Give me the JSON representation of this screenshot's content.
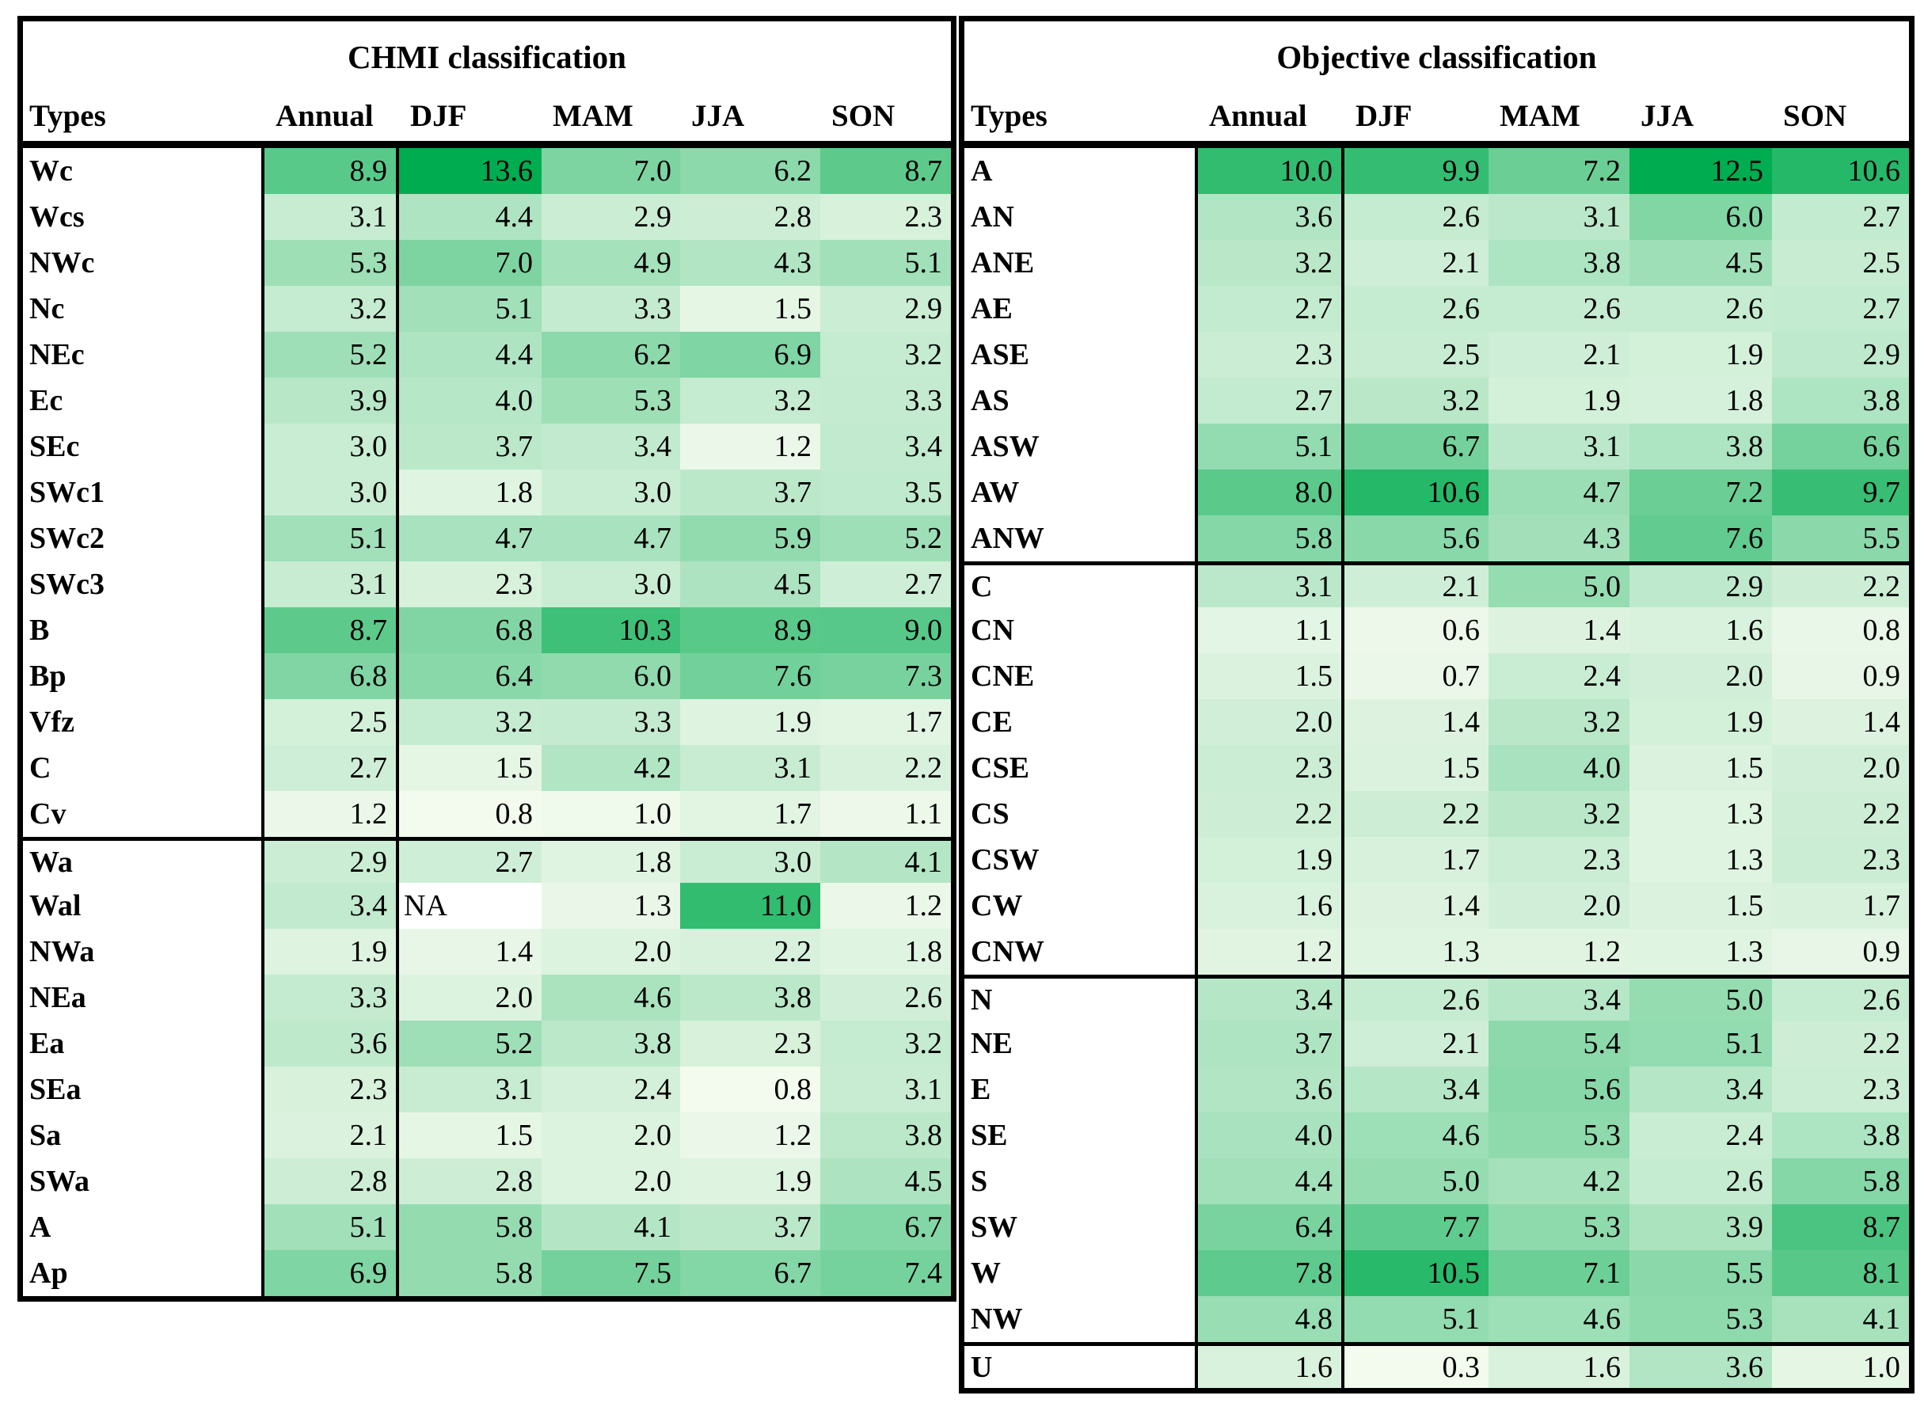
{
  "chart_data": [
    {
      "type": "heatmap",
      "title": "CHMI classification",
      "columns": [
        "Types",
        "Annual",
        "DJF",
        "MAM",
        "JJA",
        "SON"
      ],
      "color_scale": {
        "min_color": "#F3FAEE",
        "max_color": "#00AC50",
        "na_color": "#FFFFFF"
      },
      "group_breaks": [
        15
      ],
      "rows": [
        {
          "type": "Wc",
          "values": [
            "8.9",
            "13.6",
            "7.0",
            "6.2",
            "8.7"
          ]
        },
        {
          "type": "Wcs",
          "values": [
            "3.1",
            "4.4",
            "2.9",
            "2.8",
            "2.3"
          ]
        },
        {
          "type": "NWc",
          "values": [
            "5.3",
            "7.0",
            "4.9",
            "4.3",
            "5.1"
          ]
        },
        {
          "type": "Nc",
          "values": [
            "3.2",
            "5.1",
            "3.3",
            "1.5",
            "2.9"
          ]
        },
        {
          "type": "NEc",
          "values": [
            "5.2",
            "4.4",
            "6.2",
            "6.9",
            "3.2"
          ]
        },
        {
          "type": "Ec",
          "values": [
            "3.9",
            "4.0",
            "5.3",
            "3.2",
            "3.3"
          ]
        },
        {
          "type": "SEc",
          "values": [
            "3.0",
            "3.7",
            "3.4",
            "1.2",
            "3.4"
          ]
        },
        {
          "type": "SWc1",
          "values": [
            "3.0",
            "1.8",
            "3.0",
            "3.7",
            "3.5"
          ]
        },
        {
          "type": "SWc2",
          "values": [
            "5.1",
            "4.7",
            "4.7",
            "5.9",
            "5.2"
          ]
        },
        {
          "type": "SWc3",
          "values": [
            "3.1",
            "2.3",
            "3.0",
            "4.5",
            "2.7"
          ]
        },
        {
          "type": "B",
          "values": [
            "8.7",
            "6.8",
            "10.3",
            "8.9",
            "9.0"
          ]
        },
        {
          "type": "Bp",
          "values": [
            "6.8",
            "6.4",
            "6.0",
            "7.6",
            "7.3"
          ]
        },
        {
          "type": "Vfz",
          "values": [
            "2.5",
            "3.2",
            "3.3",
            "1.9",
            "1.7"
          ]
        },
        {
          "type": "C",
          "values": [
            "2.7",
            "1.5",
            "4.2",
            "3.1",
            "2.2"
          ]
        },
        {
          "type": "Cv",
          "values": [
            "1.2",
            "0.8",
            "1.0",
            "1.7",
            "1.1"
          ]
        },
        {
          "type": "Wa",
          "values": [
            "2.9",
            "2.7",
            "1.8",
            "3.0",
            "4.1"
          ]
        },
        {
          "type": "Wal",
          "values": [
            "3.4",
            "NA",
            "1.3",
            "11.0",
            "1.2"
          ]
        },
        {
          "type": "NWa",
          "values": [
            "1.9",
            "1.4",
            "2.0",
            "2.2",
            "1.8"
          ]
        },
        {
          "type": "NEa",
          "values": [
            "3.3",
            "2.0",
            "4.6",
            "3.8",
            "2.6"
          ]
        },
        {
          "type": "Ea",
          "values": [
            "3.6",
            "5.2",
            "3.8",
            "2.3",
            "3.2"
          ]
        },
        {
          "type": "SEa",
          "values": [
            "2.3",
            "3.1",
            "2.4",
            "0.8",
            "3.1"
          ]
        },
        {
          "type": "Sa",
          "values": [
            "2.1",
            "1.5",
            "2.0",
            "1.2",
            "3.8"
          ]
        },
        {
          "type": "SWa",
          "values": [
            "2.8",
            "2.8",
            "2.0",
            "1.9",
            "4.5"
          ]
        },
        {
          "type": "A",
          "values": [
            "5.1",
            "5.8",
            "4.1",
            "3.7",
            "6.7"
          ]
        },
        {
          "type": "Ap",
          "values": [
            "6.9",
            "5.8",
            "7.5",
            "6.7",
            "7.4"
          ]
        }
      ]
    },
    {
      "type": "heatmap",
      "title": "Objective classification",
      "columns": [
        "Types",
        "Annual",
        "DJF",
        "MAM",
        "JJA",
        "SON"
      ],
      "color_scale": {
        "min_color": "#F3FAEE",
        "max_color": "#00AC50",
        "na_color": "#FFFFFF"
      },
      "group_breaks": [
        9,
        18,
        26
      ],
      "rows": [
        {
          "type": "A",
          "values": [
            "10.0",
            "9.9",
            "7.2",
            "12.5",
            "10.6"
          ]
        },
        {
          "type": "AN",
          "values": [
            "3.6",
            "2.6",
            "3.1",
            "6.0",
            "2.7"
          ]
        },
        {
          "type": "ANE",
          "values": [
            "3.2",
            "2.1",
            "3.8",
            "4.5",
            "2.5"
          ]
        },
        {
          "type": "AE",
          "values": [
            "2.7",
            "2.6",
            "2.6",
            "2.6",
            "2.7"
          ]
        },
        {
          "type": "ASE",
          "values": [
            "2.3",
            "2.5",
            "2.1",
            "1.9",
            "2.9"
          ]
        },
        {
          "type": "AS",
          "values": [
            "2.7",
            "3.2",
            "1.9",
            "1.8",
            "3.8"
          ]
        },
        {
          "type": "ASW",
          "values": [
            "5.1",
            "6.7",
            "3.1",
            "3.8",
            "6.6"
          ]
        },
        {
          "type": "AW",
          "values": [
            "8.0",
            "10.6",
            "4.7",
            "7.2",
            "9.7"
          ]
        },
        {
          "type": "ANW",
          "values": [
            "5.8",
            "5.6",
            "4.3",
            "7.6",
            "5.5"
          ]
        },
        {
          "type": "C",
          "values": [
            "3.1",
            "2.1",
            "5.0",
            "2.9",
            "2.2"
          ]
        },
        {
          "type": "CN",
          "values": [
            "1.1",
            "0.6",
            "1.4",
            "1.6",
            "0.8"
          ]
        },
        {
          "type": "CNE",
          "values": [
            "1.5",
            "0.7",
            "2.4",
            "2.0",
            "0.9"
          ]
        },
        {
          "type": "CE",
          "values": [
            "2.0",
            "1.4",
            "3.2",
            "1.9",
            "1.4"
          ]
        },
        {
          "type": "CSE",
          "values": [
            "2.3",
            "1.5",
            "4.0",
            "1.5",
            "2.0"
          ]
        },
        {
          "type": "CS",
          "values": [
            "2.2",
            "2.2",
            "3.2",
            "1.3",
            "2.2"
          ]
        },
        {
          "type": "CSW",
          "values": [
            "1.9",
            "1.7",
            "2.3",
            "1.3",
            "2.3"
          ]
        },
        {
          "type": "CW",
          "values": [
            "1.6",
            "1.4",
            "2.0",
            "1.5",
            "1.7"
          ]
        },
        {
          "type": "CNW",
          "values": [
            "1.2",
            "1.3",
            "1.2",
            "1.3",
            "0.9"
          ]
        },
        {
          "type": "N",
          "values": [
            "3.4",
            "2.6",
            "3.4",
            "5.0",
            "2.6"
          ]
        },
        {
          "type": "NE",
          "values": [
            "3.7",
            "2.1",
            "5.4",
            "5.1",
            "2.2"
          ]
        },
        {
          "type": "E",
          "values": [
            "3.6",
            "3.4",
            "5.6",
            "3.4",
            "2.3"
          ]
        },
        {
          "type": "SE",
          "values": [
            "4.0",
            "4.6",
            "5.3",
            "2.4",
            "3.8"
          ]
        },
        {
          "type": "S",
          "values": [
            "4.4",
            "5.0",
            "4.2",
            "2.6",
            "5.8"
          ]
        },
        {
          "type": "SW",
          "values": [
            "6.4",
            "7.7",
            "5.3",
            "3.9",
            "8.7"
          ]
        },
        {
          "type": "W",
          "values": [
            "7.8",
            "10.5",
            "7.1",
            "5.5",
            "8.1"
          ]
        },
        {
          "type": "NW",
          "values": [
            "4.8",
            "5.1",
            "4.6",
            "5.3",
            "4.1"
          ]
        },
        {
          "type": "U",
          "values": [
            "1.6",
            "0.3",
            "1.6",
            "3.6",
            "1.0"
          ]
        }
      ]
    }
  ]
}
